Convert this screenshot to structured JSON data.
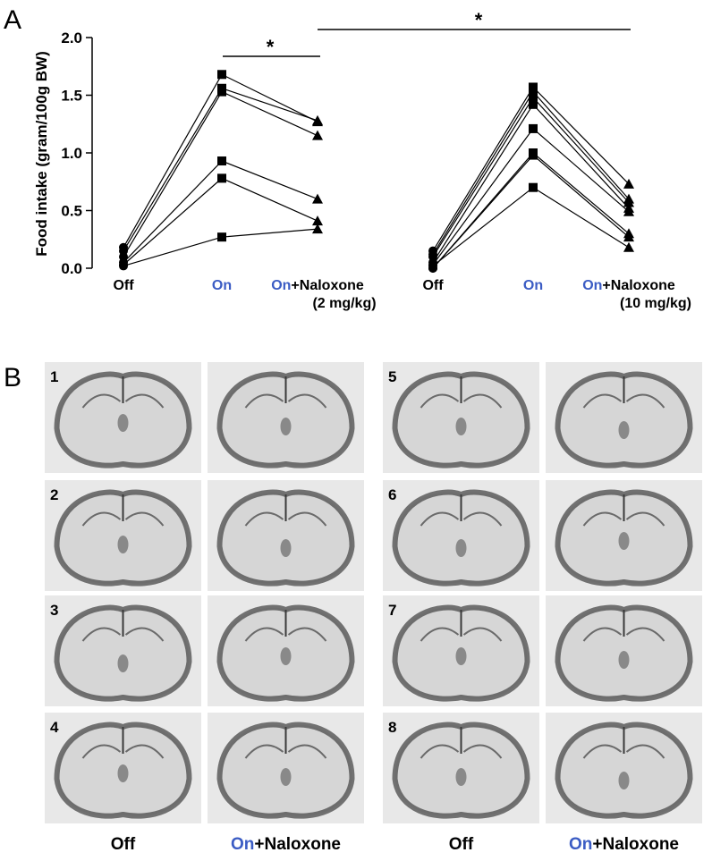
{
  "chart_data": {
    "type": "paired-line",
    "panel_label": "A",
    "y_label": "Food intake (gram/100g BW)",
    "categories": [
      [
        "Off"
      ],
      [
        "On"
      ],
      [
        "On+Naloxone",
        "(2 mg/kg)"
      ],
      [
        "Off"
      ],
      [
        "On"
      ],
      [
        "On+Naloxone",
        "(10 mg/kg)"
      ]
    ],
    "highlight": "On",
    "highlight_color": "#3b5cc4",
    "color": "#000000",
    "markers": [
      "circle",
      "square",
      "triangle",
      "circle",
      "square",
      "triangle"
    ],
    "ylim": [
      0,
      2
    ],
    "yticks": [
      {
        "value": 0,
        "label": "0.0"
      },
      0.5,
      {
        "value": 1,
        "label": "1.0"
      },
      1.5,
      {
        "value": 2,
        "label": "2.0"
      }
    ],
    "series": [
      {
        "values": [
          0.18,
          1.68,
          1.27,
          null,
          null,
          null
        ]
      },
      {
        "values": [
          0.15,
          1.56,
          1.28,
          null,
          null,
          null
        ]
      },
      {
        "values": [
          0.1,
          1.53,
          1.15,
          null,
          null,
          null
        ]
      },
      {
        "values": [
          0.05,
          0.93,
          0.6,
          null,
          null,
          null
        ]
      },
      {
        "values": [
          0.03,
          0.78,
          0.41,
          null,
          null,
          null
        ]
      },
      {
        "values": [
          0.02,
          0.27,
          0.34,
          null,
          null,
          null
        ]
      },
      {
        "values": [
          null,
          null,
          null,
          0.15,
          1.57,
          0.73
        ]
      },
      {
        "values": [
          null,
          null,
          null,
          0.12,
          1.53,
          0.6
        ]
      },
      {
        "values": [
          null,
          null,
          null,
          0.1,
          1.48,
          0.57
        ]
      },
      {
        "values": [
          null,
          null,
          null,
          0.05,
          1.42,
          0.52
        ]
      },
      {
        "values": [
          null,
          null,
          null,
          0.03,
          1.21,
          0.49
        ]
      },
      {
        "values": [
          null,
          null,
          null,
          0.0,
          1.0,
          0.3
        ]
      },
      {
        "values": [
          null,
          null,
          null,
          0.0,
          0.98,
          0.27
        ]
      },
      {
        "values": [
          null,
          null,
          null,
          0.02,
          0.7,
          0.18
        ]
      }
    ],
    "annotations": [
      "*",
      "*"
    ]
  },
  "panel_b": {
    "label": "B",
    "sections": [
      "1",
      "2",
      "3",
      "4",
      "5",
      "6",
      "7",
      "8"
    ],
    "column_labels": [
      "Off",
      "On+Naloxone",
      "Off",
      "On+Naloxone"
    ]
  }
}
